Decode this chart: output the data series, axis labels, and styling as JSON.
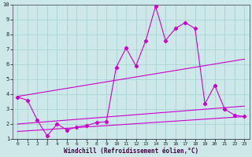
{
  "xlabel": "Windchill (Refroidissement éolien,°C)",
  "xlim": [
    -0.5,
    23.5
  ],
  "ylim": [
    1,
    10
  ],
  "xticks": [
    0,
    1,
    2,
    3,
    4,
    5,
    6,
    7,
    8,
    9,
    10,
    11,
    12,
    13,
    14,
    15,
    16,
    17,
    18,
    19,
    20,
    21,
    22,
    23
  ],
  "yticks": [
    1,
    2,
    3,
    4,
    5,
    6,
    7,
    8,
    9,
    10
  ],
  "background_color": "#cce8e8",
  "line_color": "#cc00cc",
  "grid_color": "#aad4d4",
  "line1_x": [
    0,
    1,
    2,
    3,
    4,
    5,
    6,
    7,
    8,
    9,
    10,
    11,
    12,
    13,
    14,
    15,
    16,
    17,
    18,
    19,
    20,
    21,
    22,
    23
  ],
  "line1_y": [
    3.8,
    3.6,
    2.25,
    1.2,
    2.0,
    1.6,
    1.8,
    1.9,
    2.1,
    2.15,
    5.8,
    7.1,
    5.9,
    7.6,
    9.9,
    7.6,
    8.4,
    8.8,
    8.4,
    3.35,
    4.6,
    3.0,
    2.6,
    2.5
  ],
  "line2_x": [
    0,
    23
  ],
  "line2_y": [
    3.85,
    6.35
  ],
  "line3_x": [
    0,
    23
  ],
  "line3_y": [
    2.0,
    3.2
  ],
  "line4_x": [
    0,
    23
  ],
  "line4_y": [
    1.5,
    2.5
  ]
}
